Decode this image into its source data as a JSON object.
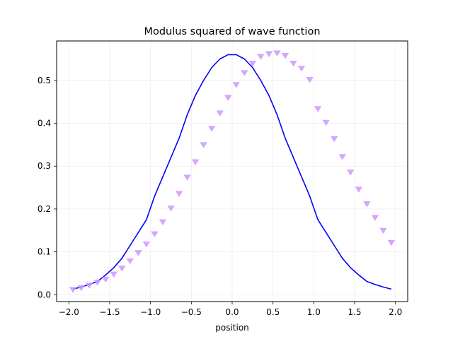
{
  "chart_data": {
    "type": "line",
    "title": "Modulus squared of wave function",
    "xlabel": "position",
    "ylabel": "",
    "xlim": [
      -2.15,
      2.15
    ],
    "ylim": [
      -0.016,
      0.592
    ],
    "xticks": [
      -2.0,
      -1.5,
      -1.0,
      -0.5,
      0.0,
      0.5,
      1.0,
      1.5,
      2.0
    ],
    "xtick_labels": [
      "−2.0",
      "−1.5",
      "−1.0",
      "−0.5",
      "0.0",
      "0.5",
      "1.0",
      "1.5",
      "2.0"
    ],
    "yticks": [
      0.0,
      0.1,
      0.2,
      0.3,
      0.4,
      0.5
    ],
    "ytick_labels": [
      "0.0",
      "0.1",
      "0.2",
      "0.3",
      "0.4",
      "0.5"
    ],
    "grid": true,
    "series": [
      {
        "style": "line",
        "color": "#0000ff",
        "x": [
          -1.95,
          -1.85,
          -1.75,
          -1.65,
          -1.55,
          -1.45,
          -1.35,
          -1.25,
          -1.15,
          -1.05,
          -0.95,
          -0.85,
          -0.75,
          -0.65,
          -0.55,
          -0.45,
          -0.35,
          -0.25,
          -0.15,
          -0.05,
          0.05,
          0.15,
          0.25,
          0.35,
          0.45,
          0.55,
          0.65,
          0.75,
          0.85,
          0.95,
          1.05,
          1.15,
          1.25,
          1.35,
          1.45,
          1.55,
          1.65,
          1.75,
          1.85,
          1.95
        ],
        "y": [
          0.013,
          0.018,
          0.024,
          0.031,
          0.046,
          0.063,
          0.085,
          0.115,
          0.145,
          0.175,
          0.23,
          0.275,
          0.32,
          0.365,
          0.42,
          0.465,
          0.5,
          0.53,
          0.55,
          0.56,
          0.56,
          0.55,
          0.53,
          0.5,
          0.465,
          0.42,
          0.365,
          0.32,
          0.275,
          0.23,
          0.175,
          0.145,
          0.115,
          0.085,
          0.063,
          0.046,
          0.031,
          0.024,
          0.018,
          0.013
        ]
      },
      {
        "style": "markers",
        "marker": "triangle-down",
        "color": "#cc99ff",
        "x": [
          -1.95,
          -1.85,
          -1.75,
          -1.65,
          -1.55,
          -1.45,
          -1.35,
          -1.25,
          -1.15,
          -1.05,
          -0.95,
          -0.85,
          -0.75,
          -0.65,
          -0.55,
          -0.45,
          -0.35,
          -0.25,
          -0.15,
          -0.05,
          0.05,
          0.15,
          0.25,
          0.35,
          0.45,
          0.55,
          0.65,
          0.75,
          0.85,
          0.95,
          1.05,
          1.15,
          1.25,
          1.35,
          1.45,
          1.55,
          1.65,
          1.75,
          1.85,
          1.95
        ],
        "y": [
          0.012,
          0.016,
          0.022,
          0.029,
          0.036,
          0.048,
          0.062,
          0.079,
          0.098,
          0.118,
          0.142,
          0.17,
          0.202,
          0.236,
          0.274,
          0.31,
          0.35,
          0.388,
          0.424,
          0.46,
          0.49,
          0.518,
          0.54,
          0.556,
          0.562,
          0.564,
          0.558,
          0.54,
          0.528,
          0.502,
          0.434,
          0.402,
          0.364,
          0.322,
          0.286,
          0.246,
          0.212,
          0.18,
          0.15,
          0.122
        ]
      }
    ]
  }
}
